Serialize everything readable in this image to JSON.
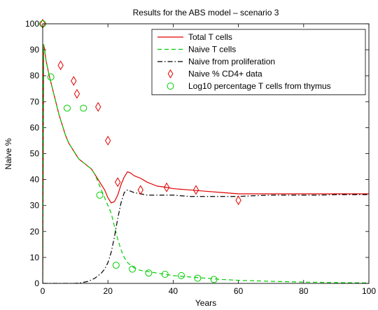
{
  "chart_data": {
    "type": "line",
    "title": "Results for the ABS model – scenario 3",
    "xlabel": "Years",
    "ylabel": "Naive %",
    "xlim": [
      0,
      100
    ],
    "ylim": [
      0,
      100
    ],
    "xticks": [
      0,
      20,
      40,
      60,
      80,
      100
    ],
    "yticks": [
      0,
      10,
      20,
      30,
      40,
      50,
      60,
      70,
      80,
      90,
      100
    ],
    "grid": false,
    "legend_position": "top-right",
    "series": [
      {
        "name": "Total T cells",
        "style": "solid",
        "color": "#e00000",
        "x": [
          0,
          0.3,
          0.6,
          1,
          1.5,
          2,
          3,
          4,
          5,
          6,
          7,
          8,
          9,
          10,
          11,
          12,
          13,
          14,
          15,
          16,
          17,
          18,
          19,
          20,
          21,
          22,
          23,
          24,
          25,
          26,
          27,
          28,
          30,
          32,
          35,
          38,
          40,
          45,
          50,
          55,
          60,
          65,
          70,
          75,
          80,
          85,
          90,
          95,
          100
        ],
        "y": [
          0,
          92,
          90,
          86,
          83,
          80,
          75,
          70,
          65,
          61,
          57,
          54,
          52,
          50,
          48,
          47,
          46,
          45,
          44,
          42,
          40,
          38,
          36,
          33,
          31,
          31.5,
          34,
          38,
          41,
          43,
          42.5,
          41.5,
          40.5,
          39,
          37.5,
          37,
          36.5,
          36,
          35.5,
          35,
          34.5,
          34.5,
          34.5,
          34.5,
          34.5,
          34.5,
          34.5,
          34.5,
          34.5
        ]
      },
      {
        "name": "Naive T cells",
        "style": "dashed",
        "color": "#00cc00",
        "x": [
          0,
          0.3,
          0.6,
          1,
          1.5,
          2,
          3,
          4,
          5,
          6,
          7,
          8,
          9,
          10,
          11,
          12,
          13,
          14,
          15,
          16,
          17,
          18,
          19,
          20,
          21,
          22,
          23,
          24,
          25,
          26,
          28,
          30,
          35,
          40,
          45,
          50,
          55,
          60,
          70,
          80,
          90,
          100
        ],
        "y": [
          0,
          92,
          90,
          86,
          83,
          80,
          75,
          70,
          65,
          61,
          57,
          54,
          52,
          50,
          48,
          47,
          46,
          45,
          44,
          42,
          39,
          36,
          33,
          30,
          27,
          22,
          17,
          13,
          10,
          8,
          6,
          5,
          4,
          3,
          2.5,
          2,
          1.5,
          1.2,
          0.8,
          0.5,
          0.3,
          0.2
        ]
      },
      {
        "name": "Naive from proliferation",
        "style": "dashdot",
        "color": "#000000",
        "x": [
          0,
          10,
          12,
          14,
          16,
          17,
          18,
          19,
          20,
          21,
          22,
          23,
          24,
          25,
          26,
          27,
          28,
          30,
          32,
          35,
          40,
          45,
          50,
          55,
          60,
          65,
          70,
          75,
          80,
          85,
          90,
          95,
          100
        ],
        "y": [
          0,
          0,
          0.3,
          0.8,
          2,
          3,
          4,
          5.5,
          8,
          12,
          18,
          25,
          31,
          35,
          36,
          35.5,
          35,
          34.5,
          34,
          34,
          34,
          33.5,
          33.5,
          33.5,
          33.5,
          33.8,
          34,
          34,
          34,
          34,
          34.2,
          34.2,
          34.2
        ]
      },
      {
        "name": "Naive % CD4+ data",
        "style": "marker-diamond",
        "color": "#e00000",
        "x": [
          0,
          5.5,
          9.5,
          10.5,
          17,
          20,
          23,
          30,
          38,
          47,
          60
        ],
        "y": [
          100,
          84,
          78,
          73,
          68,
          55,
          39,
          36,
          37,
          36,
          32
        ]
      },
      {
        "name": "Log10 percentage T cells from thymus",
        "style": "marker-circle",
        "color": "#00cc00",
        "x": [
          0,
          2.5,
          7.5,
          12.5,
          17.5,
          22.5,
          27.5,
          32.5,
          37.5,
          42.5,
          47.5,
          52.5
        ],
        "y": [
          100,
          79.5,
          67.5,
          67.5,
          34,
          7,
          5.5,
          4,
          3.5,
          3,
          2,
          1.5
        ]
      }
    ]
  }
}
